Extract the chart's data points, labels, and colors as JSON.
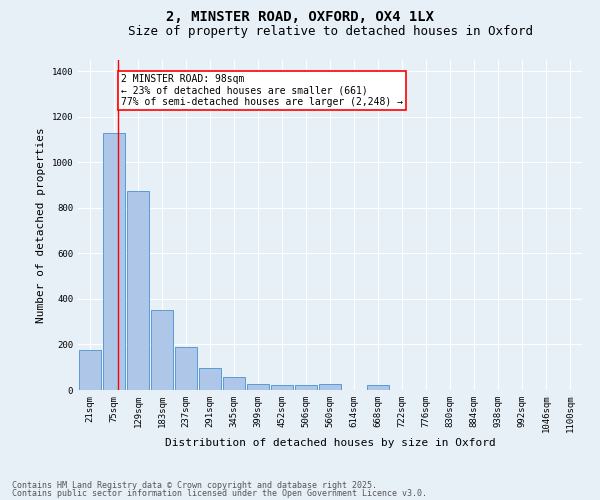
{
  "title1": "2, MINSTER ROAD, OXFORD, OX4 1LX",
  "title2": "Size of property relative to detached houses in Oxford",
  "xlabel": "Distribution of detached houses by size in Oxford",
  "ylabel": "Number of detached properties",
  "categories": [
    "21sqm",
    "75sqm",
    "129sqm",
    "183sqm",
    "237sqm",
    "291sqm",
    "345sqm",
    "399sqm",
    "452sqm",
    "506sqm",
    "560sqm",
    "614sqm",
    "668sqm",
    "722sqm",
    "776sqm",
    "830sqm",
    "884sqm",
    "938sqm",
    "992sqm",
    "1046sqm",
    "1100sqm"
  ],
  "values": [
    175,
    1130,
    875,
    350,
    190,
    95,
    55,
    25,
    20,
    20,
    25,
    0,
    20,
    0,
    0,
    0,
    0,
    0,
    0,
    0,
    0
  ],
  "bar_color": "#aec6e8",
  "bar_edge_color": "#5b9bd5",
  "background_color": "#e8f0f7",
  "grid_color": "#ffffff",
  "vline_x": 1.18,
  "vline_color": "red",
  "annotation_text": "2 MINSTER ROAD: 98sqm\n← 23% of detached houses are smaller (661)\n77% of semi-detached houses are larger (2,248) →",
  "annotation_box_color": "white",
  "annotation_box_edge": "red",
  "footer1": "Contains HM Land Registry data © Crown copyright and database right 2025.",
  "footer2": "Contains public sector information licensed under the Open Government Licence v3.0.",
  "ylim": [
    0,
    1450
  ],
  "yticks": [
    0,
    200,
    400,
    600,
    800,
    1000,
    1200,
    1400
  ],
  "title_fontsize": 10,
  "subtitle_fontsize": 9,
  "tick_fontsize": 6.5,
  "label_fontsize": 8,
  "footer_fontsize": 6,
  "annot_fontsize": 7
}
